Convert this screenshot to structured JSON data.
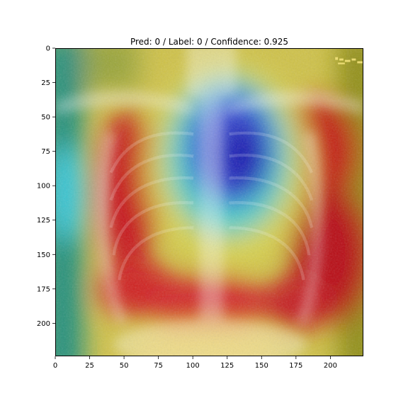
{
  "figure": {
    "title": "Pred: 0 / Label: 0 / Confidence: 0.925"
  },
  "image": {
    "description_semantic": "chest-xray-with-gradcam-heatmap-overlay",
    "colormap": "jet",
    "x_extent": [
      0,
      224
    ],
    "y_extent": [
      0,
      224
    ],
    "y_axis": "inverted"
  },
  "axes": {
    "x_ticks": [
      0,
      25,
      50,
      75,
      100,
      125,
      150,
      175,
      200
    ],
    "y_ticks": [
      0,
      25,
      50,
      75,
      100,
      125,
      150,
      175,
      200
    ]
  },
  "colors": {
    "hot_red": "#c4121a",
    "warm_yellow": "#d9cf48",
    "cold_blue": "#1d1fb8",
    "cyan": "#30c8da",
    "teal": "#1a8a7a",
    "olive": "#8a8a10"
  }
}
